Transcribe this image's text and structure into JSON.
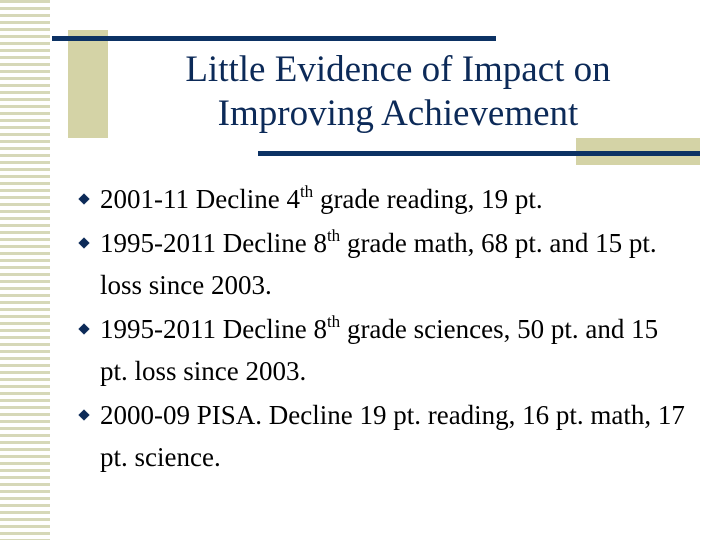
{
  "slide": {
    "title": [
      "Little Evidence of Impact on",
      "Improving Achievement"
    ],
    "bullets": [
      {
        "before": "2001-11  Decline 4",
        "sup": "th",
        "after": " grade reading, 19 pt."
      },
      {
        "before": "1995-2011 Decline 8",
        "sup": "th",
        "after": " grade math, 68 pt. and 15 pt. loss since 2003."
      },
      {
        "before": "1995-2011 Decline 8",
        "sup": "th",
        "after": " grade sciences, 50 pt. and 15 pt. loss since 2003."
      },
      {
        "before": "2000-09 PISA. Decline 19 pt. reading, 16 pt. math, 17 pt. science."
      }
    ]
  }
}
